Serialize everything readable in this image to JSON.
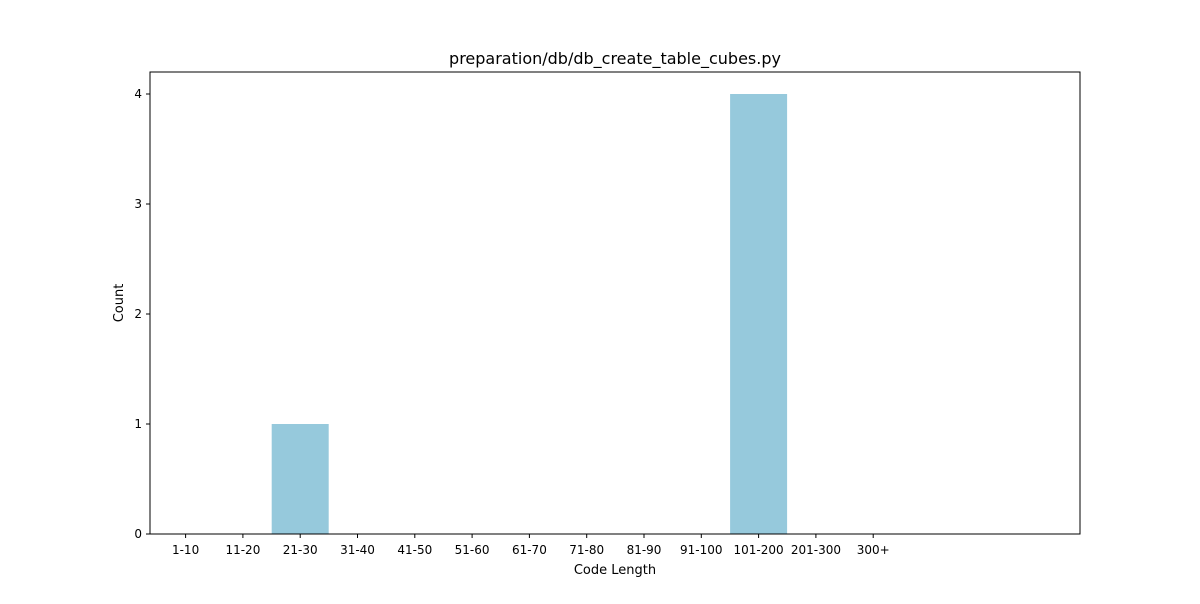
{
  "chart_data": {
    "type": "bar",
    "title": "preparation/db/db_create_table_cubes.py",
    "xlabel": "Code Length",
    "ylabel": "Count",
    "categories": [
      "1-10",
      "11-20",
      "21-30",
      "31-40",
      "41-50",
      "51-60",
      "61-70",
      "71-80",
      "81-90",
      "91-100",
      "101-200",
      "201-300",
      "300+"
    ],
    "values": [
      0,
      0,
      1,
      0,
      0,
      0,
      0,
      0,
      0,
      0,
      4,
      0,
      0
    ],
    "ylim": [
      0,
      4.2
    ],
    "yticks": [
      0,
      1,
      2,
      3,
      4
    ],
    "bar_color": "#96c9dc",
    "grid": false,
    "legend": "none"
  }
}
